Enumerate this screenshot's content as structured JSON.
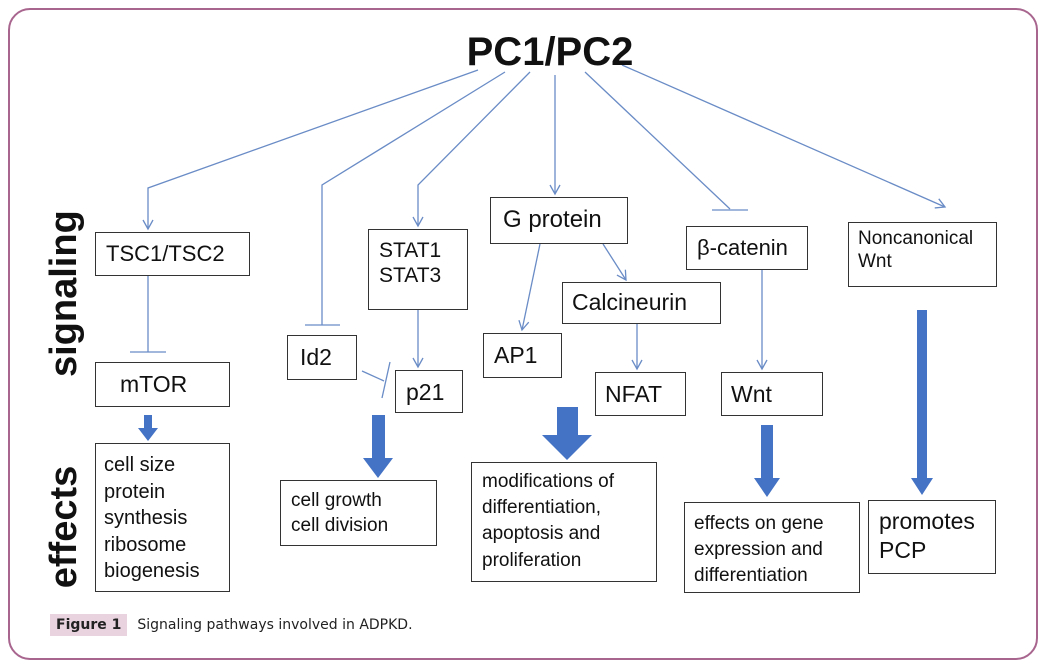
{
  "title": "PC1/PC2",
  "side_labels": {
    "signaling": "signaling",
    "effects": "effects"
  },
  "nodes": {
    "tsc": "TSC1/TSC2",
    "stat1": "STAT1",
    "stat3": "STAT3",
    "gprotein": "G protein",
    "bcatenin": "β-catenin",
    "noncanonical1": "Noncanonical",
    "noncanonical2": "Wnt",
    "mtor": "mTOR",
    "id2": "Id2",
    "p21": "p21",
    "ap1": "AP1",
    "calcineurin": "Calcineurin",
    "nfat": "NFAT",
    "wnt": "Wnt"
  },
  "effects": {
    "mtor": [
      "cell size",
      "protein",
      "synthesis",
      "ribosome",
      "biogenesis"
    ],
    "p21": [
      "cell growth",
      "cell division"
    ],
    "gprotein": [
      "modifications of",
      "differentiation,",
      "apoptosis and",
      "proliferation"
    ],
    "wnt": [
      "effects on gene",
      "expression and",
      "differentiation"
    ],
    "noncanonical": [
      "promotes",
      "PCP"
    ]
  },
  "caption": {
    "label": "Figure 1",
    "text": "Signaling pathways involved in ADPKD."
  },
  "colors": {
    "line": "#6a8cc6",
    "thick_arrow": "#4472c4",
    "frame": "#a8668f",
    "caption_label_bg": "#e8d3df"
  }
}
